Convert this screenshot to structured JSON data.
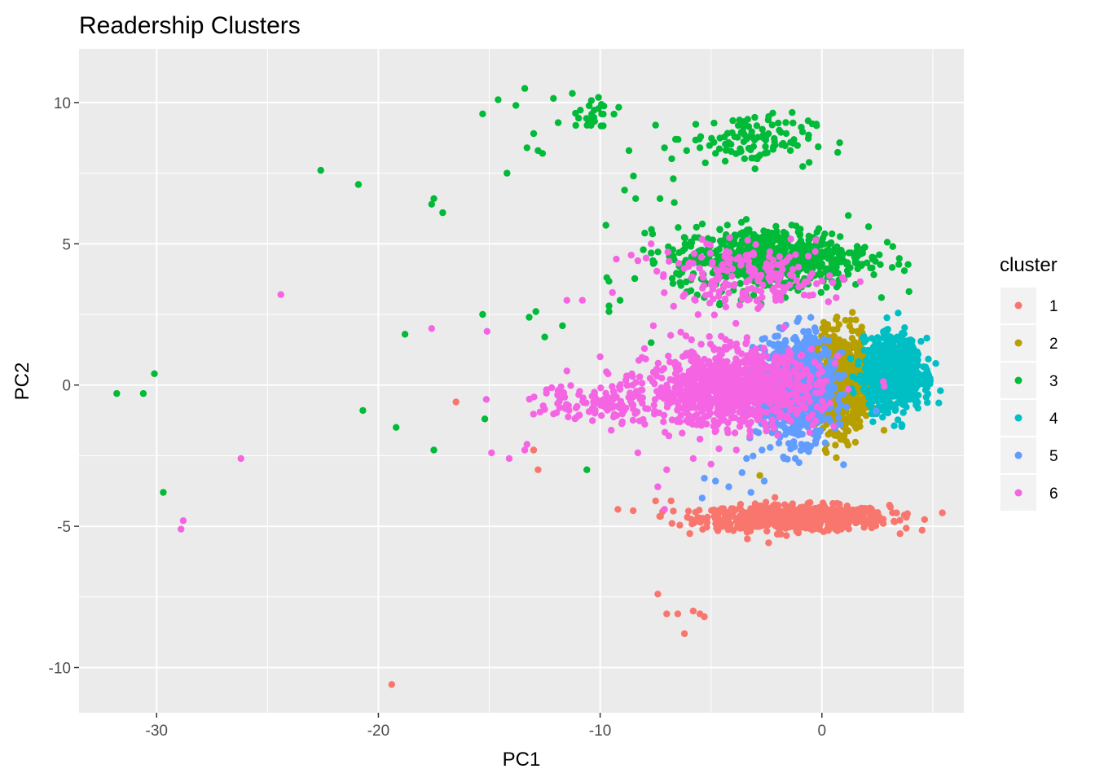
{
  "chart_data": {
    "type": "scatter",
    "title": "Readership Clusters",
    "xlabel": "PC1",
    "ylabel": "PC2",
    "xlim": [
      -33.5,
      6.4
    ],
    "ylim": [
      -11.6,
      11.9
    ],
    "x_ticks": [
      -30,
      -20,
      -10,
      0
    ],
    "x_tick_labels": [
      "-30",
      "-20",
      "-10",
      "0"
    ],
    "y_ticks": [
      -10,
      -5,
      0,
      5,
      10
    ],
    "y_tick_labels": [
      "-10",
      "-5",
      "0",
      "5",
      "10"
    ],
    "grid": true,
    "legend": {
      "title": "cluster",
      "placement": "right"
    },
    "series": [
      {
        "name": "1",
        "color": "#F8766D",
        "outliers": [
          [
            -16.5,
            -0.6
          ],
          [
            -13,
            -2.3
          ],
          [
            -12.8,
            -3
          ],
          [
            -9.2,
            -4.4
          ],
          [
            -7.4,
            -7.4
          ],
          [
            -7,
            -8.1
          ],
          [
            -6.2,
            -8.8
          ],
          [
            -5.8,
            -8
          ],
          [
            -5.5,
            -8.1
          ],
          [
            -5.3,
            -8.2
          ],
          [
            -6.5,
            -8.1
          ],
          [
            -19.4,
            -10.6
          ],
          [
            -7.5,
            -4.1
          ],
          [
            -6.8,
            -4.1
          ],
          [
            -5.7,
            -4.5
          ]
        ],
        "clusters": [
          {
            "cx": -1.2,
            "cy": -4.7,
            "sx": 2.1,
            "sy": 0.22,
            "n": 750
          }
        ]
      },
      {
        "name": "2",
        "color": "#B79F00",
        "outliers": [
          [
            1.3,
            2.3
          ],
          [
            -2.8,
            -3.2
          ],
          [
            2.8,
            -1.6
          ],
          [
            0.2,
            -2.1
          ],
          [
            1.6,
            1.9
          ]
        ],
        "clusters": [
          {
            "cx": 0.9,
            "cy": 0.1,
            "sx": 0.55,
            "sy": 0.85,
            "n": 650
          }
        ]
      },
      {
        "name": "3",
        "color": "#00BA38",
        "outliers": [
          [
            -31.8,
            -0.3
          ],
          [
            -30.6,
            -0.3
          ],
          [
            -30.1,
            0.4
          ],
          [
            -29.7,
            -3.8
          ],
          [
            -22.6,
            7.6
          ],
          [
            -20.9,
            7.1
          ],
          [
            -20.7,
            -0.9
          ],
          [
            -19.2,
            -1.5
          ],
          [
            -18.8,
            1.8
          ],
          [
            -17.6,
            6.4
          ],
          [
            -17.5,
            6.6
          ],
          [
            -17.1,
            6.1
          ],
          [
            -17.5,
            -2.3
          ],
          [
            -15.3,
            9.6
          ],
          [
            -15.3,
            2.5
          ],
          [
            -15.2,
            -1.2
          ],
          [
            -14.6,
            10.1
          ],
          [
            -14.2,
            7.5
          ],
          [
            -13.8,
            9.9
          ],
          [
            -13.4,
            10.5
          ],
          [
            -13.3,
            8.4
          ],
          [
            -13,
            8.9
          ],
          [
            -12.8,
            8.3
          ],
          [
            -12.6,
            8.2
          ],
          [
            -13.2,
            2.4
          ],
          [
            -12.9,
            2.6
          ],
          [
            -12.5,
            1.7
          ],
          [
            -11.7,
            2.1
          ],
          [
            -10.6,
            -3
          ],
          [
            -9.7,
            3.8
          ],
          [
            -9.6,
            2.8
          ],
          [
            -9.6,
            2.6
          ],
          [
            -9.1,
            3
          ],
          [
            -8.9,
            6.9
          ],
          [
            -8.7,
            8.3
          ],
          [
            -8.5,
            7.4
          ],
          [
            -8.4,
            6.6
          ],
          [
            -7.7,
            1.5
          ],
          [
            -7.6,
            4.3
          ],
          [
            -7.5,
            9.2
          ],
          [
            -7.1,
            8.4
          ],
          [
            -7.3,
            6.6
          ],
          [
            -6.7,
            7.3
          ],
          [
            -6.6,
            8.7
          ],
          [
            -6.1,
            8.3
          ],
          [
            -5.5,
            8.4
          ],
          [
            -4.8,
            8.2
          ],
          [
            -6.1,
            3.3
          ],
          [
            -5.3,
            3.1
          ],
          [
            -4.6,
            2.9
          ]
        ],
        "clusters": [
          {
            "cx": -10.3,
            "cy": 9.7,
            "sx": 0.6,
            "sy": 0.35,
            "n": 30
          },
          {
            "cx": -3.2,
            "cy": 8.7,
            "sx": 1.4,
            "sy": 0.45,
            "n": 110
          },
          {
            "cx": -2.3,
            "cy": 4.5,
            "sx": 2.2,
            "sy": 0.55,
            "n": 650
          }
        ]
      },
      {
        "name": "4",
        "color": "#00BFC4",
        "outliers": [
          [
            4.0,
            1.6
          ],
          [
            3.4,
            1.7
          ],
          [
            2.8,
            1.8
          ],
          [
            2.0,
            1.6
          ],
          [
            2.3,
            -1.3
          ],
          [
            3.6,
            -1.4
          ]
        ],
        "clusters": [
          {
            "cx": 3.2,
            "cy": 0.4,
            "sx": 0.65,
            "sy": 0.6,
            "n": 900
          }
        ]
      },
      {
        "name": "5",
        "color": "#619CFF",
        "outliers": [
          [
            -5.4,
            -4.0
          ],
          [
            -5.3,
            -3.3
          ],
          [
            -4.8,
            -3.4
          ],
          [
            -4.2,
            -3.6
          ],
          [
            -3.6,
            -3.1
          ],
          [
            -3.4,
            -2.6
          ],
          [
            -3.2,
            -3.8
          ],
          [
            -2.6,
            -3.4
          ],
          [
            -2.7,
            -2.3
          ],
          [
            -1.7,
            -2.6
          ],
          [
            -1.2,
            -2.6
          ]
        ],
        "clusters": [
          {
            "cx": -1.2,
            "cy": -0.1,
            "sx": 0.85,
            "sy": 0.9,
            "n": 900
          }
        ]
      },
      {
        "name": "6",
        "color": "#F564E3",
        "outliers": [
          [
            -24.4,
            3.2
          ],
          [
            -26.2,
            -2.6
          ],
          [
            -28.8,
            -4.8
          ],
          [
            -28.9,
            -5.1
          ],
          [
            -17.6,
            2.0
          ],
          [
            -14.9,
            -2.4
          ],
          [
            -15.1,
            1.9
          ],
          [
            -14.1,
            -2.6
          ],
          [
            -13.4,
            -2.3
          ],
          [
            -13.3,
            -2.1
          ],
          [
            -11.5,
            3.0
          ],
          [
            -10.8,
            3.0
          ],
          [
            -10.3,
            -0.6
          ],
          [
            -10.0,
            1.0
          ],
          [
            -9.5,
            -1.6
          ],
          [
            -8.6,
            4.6
          ],
          [
            -8.3,
            4.4
          ],
          [
            -7.6,
            2.1
          ],
          [
            -7.7,
            5.0
          ],
          [
            -7.4,
            -3.6
          ],
          [
            -7.1,
            -4.4
          ],
          [
            -7.0,
            -3.0
          ],
          [
            -6.4,
            -1.3
          ],
          [
            -6.3,
            -1.7
          ],
          [
            -5.2,
            5.0
          ],
          [
            -5.8,
            -2.6
          ],
          [
            -5.0,
            -2.8
          ],
          [
            -11.9,
            -0.2
          ],
          [
            -11.5,
            0.5
          ],
          [
            -9.4,
            -0.5
          ],
          [
            -8.8,
            0.3
          ],
          [
            -9.0,
            -1.3
          ],
          [
            -8.3,
            -2.4
          ],
          [
            -6.9,
            -1.8
          ],
          [
            -6.0,
            4.3
          ]
        ],
        "clusters": [
          {
            "cx": -4.0,
            "cy": -0.1,
            "sx": 1.9,
            "sy": 0.65,
            "n": 1000
          },
          {
            "cx": -9.3,
            "cy": -0.6,
            "sx": 1.9,
            "sy": 0.35,
            "n": 130
          },
          {
            "cx": -3.2,
            "cy": 3.8,
            "sx": 2.0,
            "sy": 0.55,
            "n": 200
          }
        ]
      }
    ]
  }
}
